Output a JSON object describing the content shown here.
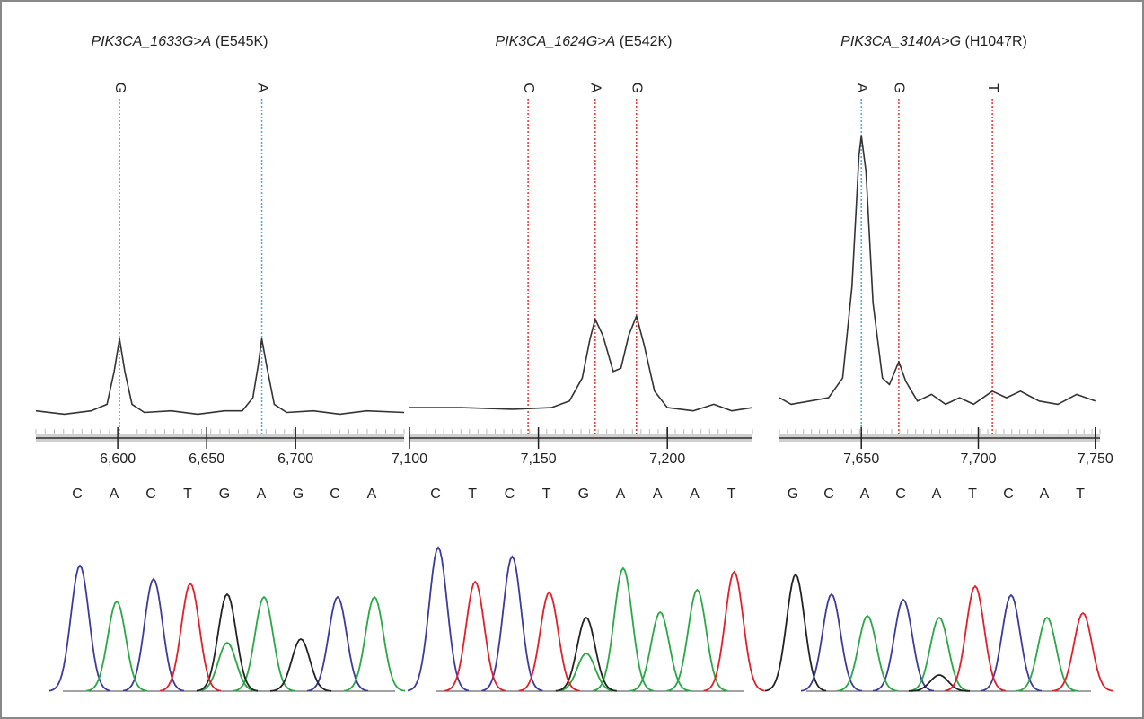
{
  "chart_data": [
    {
      "type": "line",
      "title_gene": "PIK3CA_1633G>A",
      "title_protein": "(E545K)",
      "color": "#333333",
      "xlim": [
        6554,
        6761
      ],
      "ylim": [
        0,
        100
      ],
      "xticks": [
        {
          "value": 6600,
          "label": "6,600"
        },
        {
          "value": 6650,
          "label": "6,650"
        },
        {
          "value": 6700,
          "label": "6,700"
        }
      ],
      "x": [
        6554,
        6570,
        6585,
        6594,
        6598,
        6601,
        6604,
        6608,
        6615,
        6630,
        6645,
        6660,
        6670,
        6676,
        6679,
        6681,
        6684,
        6688,
        6695,
        6710,
        6725,
        6740,
        6761
      ],
      "values": [
        2,
        1,
        2,
        4,
        14,
        24,
        14,
        4,
        1.5,
        2,
        1,
        2,
        2,
        6,
        16,
        24,
        15,
        4,
        1.5,
        2,
        1,
        2,
        1.5
      ],
      "markers": [
        {
          "label": "G",
          "x": 6601,
          "color": "#4fa8d8"
        },
        {
          "label": "A",
          "x": 6681,
          "color": "#4fa8d8"
        }
      ],
      "base_calls": [
        {
          "base": "C",
          "color": "#3b3b9e"
        },
        {
          "base": "A",
          "color": "#2aa845"
        },
        {
          "base": "C",
          "color": "#3b3b9e"
        },
        {
          "base": "T",
          "color": "#e0202a"
        },
        {
          "base": "G",
          "color": "#222222"
        },
        {
          "base": "A",
          "color": "#2aa845"
        },
        {
          "base": "G",
          "color": "#222222"
        },
        {
          "base": "C",
          "color": "#3b3b9e"
        },
        {
          "base": "A",
          "color": "#2aa845"
        }
      ],
      "chromatogram": {
        "ylim": [
          0,
          170
        ],
        "series": [
          {
            "color": "#3b3b9e",
            "values": [
              140,
              null,
              125,
              null,
              null,
              null,
              null,
              105,
              null
            ]
          },
          {
            "color": "#2aa845",
            "values": [
              null,
              100,
              null,
              null,
              54,
              105,
              null,
              null,
              105
            ]
          },
          {
            "color": "#222222",
            "values": [
              null,
              null,
              null,
              null,
              108,
              null,
              58,
              null,
              null
            ]
          },
          {
            "color": "#e0202a",
            "values": [
              null,
              null,
              null,
              120,
              null,
              null,
              null,
              null,
              null
            ]
          }
        ]
      }
    },
    {
      "type": "line",
      "title_gene": "PIK3CA_1624G>A",
      "title_protein": "(E542K)",
      "color": "#333333",
      "xlim": [
        7100,
        7233
      ],
      "ylim": [
        0,
        100
      ],
      "xticks": [
        {
          "value": 7100,
          "label": "7,100"
        },
        {
          "value": 7150,
          "label": "7,150"
        },
        {
          "value": 7200,
          "label": "7,200"
        }
      ],
      "x": [
        7100,
        7120,
        7140,
        7155,
        7162,
        7167,
        7170,
        7172,
        7175,
        7179,
        7182,
        7185,
        7188,
        7191,
        7195,
        7200,
        7210,
        7218,
        7225,
        7233
      ],
      "values": [
        3,
        3,
        2.5,
        3,
        5,
        12,
        24,
        30,
        25,
        14,
        15,
        25,
        31,
        22,
        8,
        3,
        2,
        4,
        2,
        3
      ],
      "markers": [
        {
          "label": "C",
          "x": 7146,
          "color": "#e8383a"
        },
        {
          "label": "A",
          "x": 7172,
          "color": "#e8383a"
        },
        {
          "label": "G",
          "x": 7188,
          "color": "#e8383a"
        }
      ],
      "base_calls": [
        {
          "base": "C",
          "color": "#3b3b9e"
        },
        {
          "base": "T",
          "color": "#e0202a"
        },
        {
          "base": "C",
          "color": "#3b3b9e"
        },
        {
          "base": "T",
          "color": "#e0202a"
        },
        {
          "base": "G",
          "color": "#222222"
        },
        {
          "base": "A",
          "color": "#2aa845"
        },
        {
          "base": "A",
          "color": "#2aa845"
        },
        {
          "base": "A",
          "color": "#2aa845"
        },
        {
          "base": "T",
          "color": "#e0202a"
        }
      ],
      "chromatogram": {
        "ylim": [
          0,
          170
        ],
        "series": [
          {
            "color": "#3b3b9e",
            "values": [
              160,
              null,
              150,
              null,
              null,
              null,
              null,
              null,
              null
            ]
          },
          {
            "color": "#2aa845",
            "values": [
              null,
              null,
              null,
              null,
              42,
              137,
              88,
              113,
              null
            ]
          },
          {
            "color": "#222222",
            "values": [
              null,
              null,
              null,
              null,
              82,
              null,
              null,
              null,
              null
            ]
          },
          {
            "color": "#e0202a",
            "values": [
              null,
              122,
              null,
              110,
              null,
              null,
              null,
              null,
              133
            ]
          }
        ]
      }
    },
    {
      "type": "line",
      "title_gene": "PIK3CA_3140A>G",
      "title_protein": "(H1047R)",
      "color": "#333333",
      "xlim": [
        7615,
        7752
      ],
      "ylim": [
        0,
        100
      ],
      "xticks": [
        {
          "value": 7650,
          "label": "7,650"
        },
        {
          "value": 7700,
          "label": "7,700"
        },
        {
          "value": 7750,
          "label": "7,750"
        }
      ],
      "x": [
        7615,
        7620,
        7628,
        7636,
        7642,
        7646,
        7649,
        7650,
        7652,
        7655,
        7659,
        7662,
        7666,
        7669,
        7674,
        7680,
        7686,
        7692,
        7698,
        7706,
        7712,
        7718,
        7726,
        7734,
        7742,
        7750
      ],
      "values": [
        6,
        4,
        5,
        6,
        12,
        40,
        80,
        86,
        75,
        35,
        12,
        10,
        17,
        11,
        5,
        7,
        4,
        6,
        4,
        8,
        6,
        8,
        5,
        4,
        7,
        5
      ],
      "markers": [
        {
          "label": "A",
          "x": 7650,
          "color": "#4fa8d8"
        },
        {
          "label": "G",
          "x": 7666,
          "color": "#e8383a"
        },
        {
          "label": "T",
          "x": 7706,
          "color": "#e8383a"
        }
      ],
      "base_calls": [
        {
          "base": "G",
          "color": "#222222"
        },
        {
          "base": "C",
          "color": "#3b3b9e"
        },
        {
          "base": "A",
          "color": "#2aa845"
        },
        {
          "base": "C",
          "color": "#3b3b9e"
        },
        {
          "base": "A",
          "color": "#2aa845"
        },
        {
          "base": "T",
          "color": "#e0202a"
        },
        {
          "base": "C",
          "color": "#3b3b9e"
        },
        {
          "base": "A",
          "color": "#2aa845"
        },
        {
          "base": "T",
          "color": "#e0202a"
        }
      ],
      "chromatogram": {
        "ylim": [
          0,
          170
        ],
        "series": [
          {
            "color": "#3b3b9e",
            "values": [
              null,
              108,
              null,
              102,
              null,
              null,
              107,
              null,
              null
            ]
          },
          {
            "color": "#2aa845",
            "values": [
              null,
              null,
              84,
              null,
              82,
              null,
              null,
              82,
              null
            ]
          },
          {
            "color": "#222222",
            "values": [
              130,
              null,
              null,
              null,
              18,
              null,
              null,
              null,
              null
            ]
          },
          {
            "color": "#e0202a",
            "values": [
              null,
              null,
              null,
              null,
              null,
              117,
              null,
              null,
              87
            ]
          }
        ]
      }
    }
  ]
}
